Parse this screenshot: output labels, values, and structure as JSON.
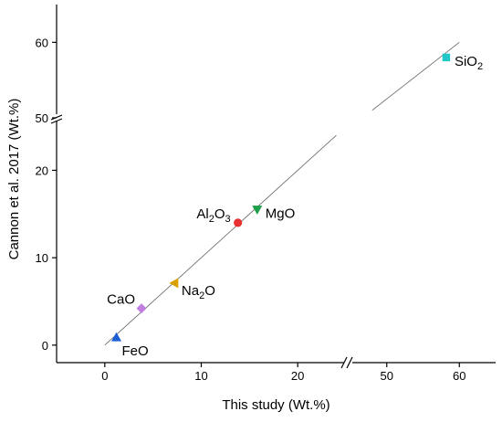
{
  "chart_data": {
    "type": "scatter",
    "xlabel": "This study (Wt.%)",
    "ylabel": "Cannon et al. 2017 (Wt.%)",
    "x_axis": {
      "segments": [
        {
          "range": [
            -5,
            25
          ],
          "ticks": [
            0,
            10,
            20
          ]
        },
        {
          "range": [
            45,
            65
          ],
          "ticks": [
            50,
            60
          ]
        }
      ]
    },
    "y_axis": {
      "segments": [
        {
          "range": [
            -2,
            26
          ],
          "ticks": [
            0,
            10,
            20
          ]
        },
        {
          "range": [
            50,
            65
          ],
          "ticks": [
            50,
            60
          ]
        }
      ]
    },
    "points": [
      {
        "name": "FeO",
        "label_main": "FeO",
        "label_sub": "",
        "label_tail": "",
        "x": 1.2,
        "y": 0.9,
        "color": "#1f5fd6",
        "marker": "triangle-up",
        "label_pos": "below-right"
      },
      {
        "name": "CaO",
        "label_main": "CaO",
        "label_sub": "",
        "label_tail": "",
        "x": 3.8,
        "y": 4.2,
        "color": "#c27ee0",
        "marker": "diamond",
        "label_pos": "left"
      },
      {
        "name": "Na2O",
        "label_main": "Na",
        "label_sub": "2",
        "label_tail": "O",
        "x": 7.2,
        "y": 7.1,
        "color": "#d9a000",
        "marker": "triangle-left",
        "label_pos": "right-below"
      },
      {
        "name": "Al2O3",
        "label_main": "Al",
        "label_sub": "2",
        "label_tail": "O",
        "label_sub2": "3",
        "x": 13.8,
        "y": 14.0,
        "color": "#e83030",
        "marker": "circle",
        "label_pos": "left-above"
      },
      {
        "name": "MgO",
        "label_main": "MgO",
        "label_sub": "",
        "label_tail": "",
        "x": 15.8,
        "y": 15.5,
        "color": "#1ea04a",
        "marker": "triangle-down",
        "label_pos": "right"
      },
      {
        "name": "SiO2",
        "label_main": "SiO",
        "label_sub": "2",
        "label_tail": "",
        "x": 58.2,
        "y": 58.0,
        "color": "#20c8c8",
        "marker": "square",
        "label_pos": "right"
      }
    ],
    "reference_line": "1:1",
    "grid": false
  }
}
